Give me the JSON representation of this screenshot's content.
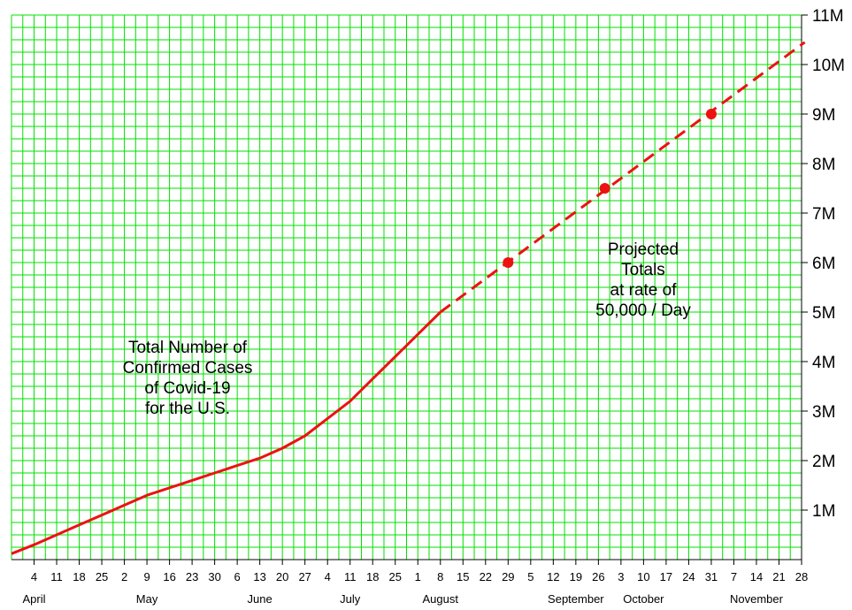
{
  "chart_data": {
    "type": "line",
    "title": "",
    "xlabel": "",
    "ylabel": "",
    "ylim": [
      0,
      11000000
    ],
    "grid": true,
    "grid_color": "#00e000",
    "line_color": "#ee1111",
    "y_ticks": [
      {
        "value": 1000000,
        "label": "1M"
      },
      {
        "value": 2000000,
        "label": "2M"
      },
      {
        "value": 3000000,
        "label": "3M"
      },
      {
        "value": 4000000,
        "label": "4M"
      },
      {
        "value": 5000000,
        "label": "5M"
      },
      {
        "value": 6000000,
        "label": "6M"
      },
      {
        "value": 7000000,
        "label": "7M"
      },
      {
        "value": 8000000,
        "label": "8M"
      },
      {
        "value": 9000000,
        "label": "9M"
      },
      {
        "value": 10000000,
        "label": "10M"
      },
      {
        "value": 11000000,
        "label": "11M"
      }
    ],
    "x_ticks": [
      "4",
      "11",
      "18",
      "25",
      "2",
      "9",
      "16",
      "23",
      "30",
      "6",
      "13",
      "20",
      "27",
      "4",
      "11",
      "18",
      "25",
      "1",
      "8",
      "15",
      "22",
      "29",
      "5",
      "12",
      "19",
      "26",
      "3",
      "10",
      "17",
      "24",
      "31",
      "7",
      "14",
      "21",
      "28"
    ],
    "x_tick_dates": [
      "2020-04-04",
      "2020-04-11",
      "2020-04-18",
      "2020-04-25",
      "2020-05-02",
      "2020-05-09",
      "2020-05-16",
      "2020-05-23",
      "2020-05-30",
      "2020-06-06",
      "2020-06-13",
      "2020-06-20",
      "2020-06-27",
      "2020-07-04",
      "2020-07-11",
      "2020-07-18",
      "2020-07-25",
      "2020-08-01",
      "2020-08-08",
      "2020-08-15",
      "2020-08-22",
      "2020-08-29",
      "2020-09-05",
      "2020-09-12",
      "2020-09-19",
      "2020-09-26",
      "2020-10-03",
      "2020-10-10",
      "2020-10-17",
      "2020-10-24",
      "2020-10-31",
      "2020-11-07",
      "2020-11-14",
      "2020-11-21",
      "2020-11-28"
    ],
    "months": [
      {
        "label": "April",
        "date": "2020-04-04"
      },
      {
        "label": "May",
        "date": "2020-05-09"
      },
      {
        "label": "June",
        "date": "2020-06-13"
      },
      {
        "label": "July",
        "date": "2020-07-11"
      },
      {
        "label": "August",
        "date": "2020-08-08"
      },
      {
        "label": "September",
        "date": "2020-09-19"
      },
      {
        "label": "October",
        "date": "2020-10-10"
      },
      {
        "label": "November",
        "date": "2020-11-14"
      }
    ],
    "series": [
      {
        "style": "solid",
        "points": [
          {
            "x": "2020-03-28",
            "y": 120000
          },
          {
            "x": "2020-04-04",
            "y": 300000
          },
          {
            "x": "2020-04-11",
            "y": 500000
          },
          {
            "x": "2020-04-18",
            "y": 700000
          },
          {
            "x": "2020-04-25",
            "y": 900000
          },
          {
            "x": "2020-05-02",
            "y": 1100000
          },
          {
            "x": "2020-05-09",
            "y": 1300000
          },
          {
            "x": "2020-05-16",
            "y": 1450000
          },
          {
            "x": "2020-05-23",
            "y": 1600000
          },
          {
            "x": "2020-05-30",
            "y": 1750000
          },
          {
            "x": "2020-06-06",
            "y": 1900000
          },
          {
            "x": "2020-06-13",
            "y": 2050000
          },
          {
            "x": "2020-06-20",
            "y": 2250000
          },
          {
            "x": "2020-06-27",
            "y": 2500000
          },
          {
            "x": "2020-07-04",
            "y": 2850000
          },
          {
            "x": "2020-07-11",
            "y": 3200000
          },
          {
            "x": "2020-07-18",
            "y": 3650000
          },
          {
            "x": "2020-07-25",
            "y": 4100000
          },
          {
            "x": "2020-08-01",
            "y": 4550000
          },
          {
            "x": "2020-08-08",
            "y": 5000000
          }
        ]
      },
      {
        "style": "dashed",
        "points": [
          {
            "x": "2020-08-08",
            "y": 5000000
          },
          {
            "x": "2020-11-29",
            "y": 10450000
          }
        ]
      }
    ],
    "markers": [
      {
        "x": "2020-08-29",
        "y": 6000000
      },
      {
        "x": "2020-09-28",
        "y": 7500000
      },
      {
        "x": "2020-10-31",
        "y": 9000000
      }
    ],
    "annotations": {
      "actual": [
        "Total Number of",
        "Confirmed Cases",
        "of Covid-19",
        "for the U.S."
      ],
      "projected": [
        "Projected",
        "Totals",
        "at rate of",
        "50,000 / Day"
      ]
    }
  }
}
